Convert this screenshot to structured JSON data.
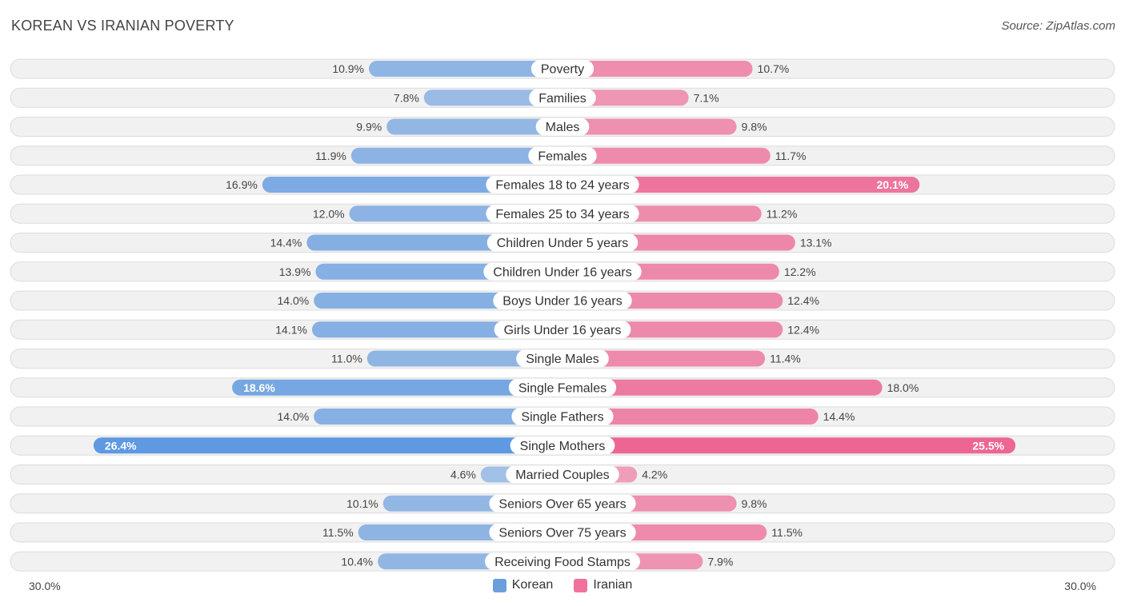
{
  "title": "KOREAN VS IRANIAN POVERTY",
  "source": "Source: ZipAtlas.com",
  "colors": {
    "korean": "#6a9fdc",
    "iranian": "#f0719a"
  },
  "axis": {
    "left_label": "30.0%",
    "right_label": "30.0%"
  },
  "legend": [
    {
      "name": "Korean",
      "color": "#6a9fdc"
    },
    {
      "name": "Iranian",
      "color": "#f0719a"
    }
  ],
  "chart_data": {
    "type": "bar",
    "orientation": "horizontal-diverging",
    "title": "KOREAN VS IRANIAN POVERTY",
    "xlim": [
      0,
      30
    ],
    "categories": [
      "Poverty",
      "Families",
      "Males",
      "Females",
      "Females 18 to 24 years",
      "Females 25 to 34 years",
      "Children Under 5 years",
      "Children Under 16 years",
      "Boys Under 16 years",
      "Girls Under 16 years",
      "Single Males",
      "Single Females",
      "Single Fathers",
      "Single Mothers",
      "Married Couples",
      "Seniors Over 65 years",
      "Seniors Over 75 years",
      "Receiving Food Stamps"
    ],
    "series": [
      {
        "name": "Korean",
        "values": [
          10.9,
          7.8,
          9.9,
          11.9,
          16.9,
          12.0,
          14.4,
          13.9,
          14.0,
          14.1,
          11.0,
          18.6,
          14.0,
          26.4,
          4.6,
          10.1,
          11.5,
          10.4
        ],
        "labels": [
          "10.9%",
          "7.8%",
          "9.9%",
          "11.9%",
          "16.9%",
          "12.0%",
          "14.4%",
          "13.9%",
          "14.0%",
          "14.1%",
          "11.0%",
          "18.6%",
          "14.0%",
          "26.4%",
          "4.6%",
          "10.1%",
          "11.5%",
          "10.4%"
        ]
      },
      {
        "name": "Iranian",
        "values": [
          10.7,
          7.1,
          9.8,
          11.7,
          20.1,
          11.2,
          13.1,
          12.2,
          12.4,
          12.4,
          11.4,
          18.0,
          14.4,
          25.5,
          4.2,
          9.8,
          11.5,
          7.9
        ],
        "labels": [
          "10.7%",
          "7.1%",
          "9.8%",
          "11.7%",
          "20.1%",
          "11.2%",
          "13.1%",
          "12.2%",
          "12.4%",
          "12.4%",
          "11.4%",
          "18.0%",
          "14.4%",
          "25.5%",
          "4.2%",
          "9.8%",
          "11.5%",
          "7.9%"
        ]
      }
    ]
  }
}
